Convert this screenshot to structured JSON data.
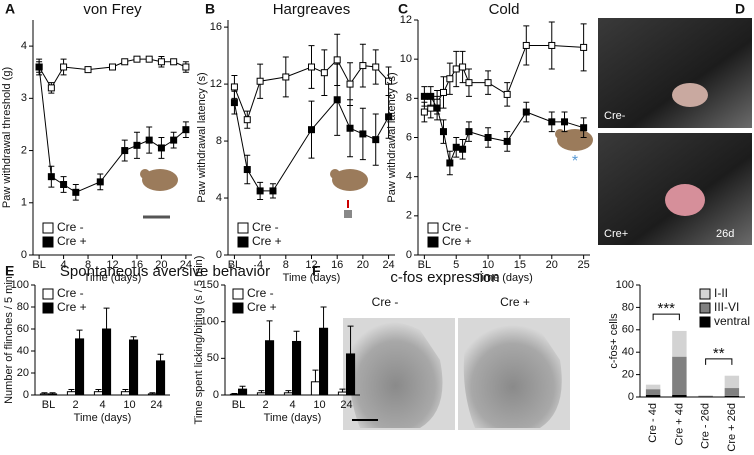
{
  "chart_data": [
    {
      "type": "line",
      "label": "A",
      "title": "von Frey",
      "xlabel": "Time (days)",
      "ylabel": "Paw withdrawal threshold (g)",
      "xlim": [
        -1,
        25
      ],
      "xticks": [
        {
          "value": 0,
          "label": "BL"
        },
        4,
        8,
        12,
        16,
        20,
        24
      ],
      "ylim": [
        0,
        4.5
      ],
      "yticks": [
        0,
        1,
        2,
        3,
        4
      ],
      "legend": "lower left",
      "series": [
        {
          "name": "Cre -",
          "color": "#ffffff",
          "x": [
            0,
            2,
            4,
            8,
            12,
            14,
            16,
            18,
            20,
            22,
            24
          ],
          "values": [
            3.6,
            3.2,
            3.6,
            3.55,
            3.6,
            3.7,
            3.75,
            3.75,
            3.7,
            3.7,
            3.6
          ],
          "errors": [
            0.1,
            0.1,
            0.15,
            0.05,
            0.05,
            0.05,
            0.05,
            0.05,
            0.1,
            0.05,
            0.1
          ]
        },
        {
          "name": "Cre +",
          "color": "#000000",
          "x": [
            0,
            2,
            4,
            6,
            10,
            14,
            16,
            18,
            20,
            22,
            24
          ],
          "values": [
            3.6,
            1.5,
            1.35,
            1.2,
            1.4,
            2.0,
            2.1,
            2.2,
            2.05,
            2.2,
            2.4
          ],
          "errors": [
            0.15,
            0.2,
            0.15,
            0.15,
            0.15,
            0.2,
            0.25,
            0.25,
            0.2,
            0.15,
            0.15
          ]
        }
      ]
    },
    {
      "type": "line",
      "label": "B",
      "title": "Hargreaves",
      "xlabel": "Time (days)",
      "ylabel": "Paw withdrawal latency (s)",
      "xlim": [
        -1,
        25
      ],
      "xticks": [
        {
          "value": 0,
          "label": "BL"
        },
        4,
        8,
        12,
        16,
        20,
        24
      ],
      "ylim": [
        0,
        16.5
      ],
      "yticks": [
        0,
        4,
        8,
        12,
        16
      ],
      "legend": "lower left",
      "series": [
        {
          "name": "Cre -",
          "color": "#ffffff",
          "x": [
            0,
            2,
            4,
            8,
            12,
            14,
            16,
            18,
            20,
            22,
            24
          ],
          "values": [
            11.8,
            9.5,
            12.2,
            12.5,
            13.2,
            12.8,
            13.7,
            12.0,
            13.3,
            13.2,
            12.2
          ],
          "errors": [
            0.8,
            0.6,
            1.2,
            1.4,
            1.5,
            1.6,
            1.8,
            1.5,
            1.5,
            1.2,
            1.0
          ]
        },
        {
          "name": "Cre +",
          "color": "#000000",
          "x": [
            0,
            2,
            4,
            6,
            12,
            16,
            18,
            20,
            22,
            24
          ],
          "values": [
            10.7,
            6.0,
            4.5,
            4.5,
            8.8,
            10.9,
            8.9,
            8.5,
            8.1,
            9.7
          ],
          "errors": [
            0.8,
            1.0,
            0.6,
            0.5,
            2.0,
            2.5,
            2.0,
            1.8,
            1.8,
            1.5
          ]
        }
      ]
    },
    {
      "type": "line",
      "label": "C",
      "title": "Cold",
      "xlabel": "Time (days)",
      "ylabel": "Paw withdrawal latency (s)",
      "xlim": [
        -1,
        26
      ],
      "xticks": [
        {
          "value": 0,
          "label": "BL"
        },
        5,
        10,
        15,
        20,
        25
      ],
      "ylim": [
        0,
        12
      ],
      "yticks": [
        0,
        2,
        4,
        6,
        8,
        10,
        12
      ],
      "legend": "lower left",
      "series": [
        {
          "name": "Cre -",
          "color": "#ffffff",
          "x": [
            0,
            1,
            2,
            3,
            4,
            5,
            6,
            7,
            10,
            13,
            16,
            20,
            25
          ],
          "values": [
            7.3,
            7.5,
            7.8,
            8.3,
            9.0,
            9.5,
            9.6,
            8.8,
            8.8,
            8.2,
            10.7,
            10.7,
            10.6
          ],
          "errors": [
            0.5,
            0.5,
            0.6,
            0.8,
            0.8,
            0.9,
            0.8,
            0.7,
            0.6,
            0.6,
            1.0,
            1.2,
            1.2
          ]
        },
        {
          "name": "Cre +",
          "color": "#000000",
          "x": [
            0,
            1,
            2,
            3,
            4,
            5,
            6,
            7,
            10,
            13,
            16,
            20,
            22,
            25
          ],
          "values": [
            8.1,
            8.1,
            7.5,
            6.3,
            4.7,
            5.5,
            5.4,
            6.3,
            6.0,
            5.8,
            7.3,
            6.8,
            6.8,
            6.5
          ],
          "errors": [
            0.5,
            0.5,
            0.6,
            0.6,
            0.6,
            0.5,
            0.5,
            0.5,
            0.5,
            0.5,
            0.5,
            0.5,
            0.5,
            0.5
          ]
        }
      ]
    },
    {
      "type": "bar",
      "label": "E",
      "title": "Spontaneous aversive behavior",
      "xlabel": "Time (days)",
      "ylabel": "Number of flinches / 5 min",
      "categories": [
        "BL",
        "2",
        "4",
        "10",
        "24"
      ],
      "ylim": [
        0,
        100
      ],
      "yticks": [
        0,
        20,
        40,
        60,
        80,
        100
      ],
      "legend": "upper left",
      "series": [
        {
          "name": "Cre -",
          "color": "#ffffff",
          "values": [
            1,
            3,
            3,
            3,
            1
          ],
          "errors": [
            1,
            2,
            2,
            2,
            1
          ]
        },
        {
          "name": "Cre +",
          "color": "#000000",
          "values": [
            1,
            51,
            60,
            50,
            31
          ],
          "errors": [
            1,
            8,
            19,
            3,
            6
          ]
        }
      ]
    },
    {
      "type": "bar",
      "xlabel": "Time (days)",
      "ylabel": "Time spent licking/biting (s / 5 min)",
      "categories": [
        "BL",
        "2",
        "4",
        "10",
        "24"
      ],
      "ylim": [
        0,
        150
      ],
      "yticks": [
        0,
        50,
        100,
        150
      ],
      "legend": "upper left",
      "series": [
        {
          "name": "Cre -",
          "color": "#ffffff",
          "values": [
            1,
            3,
            3,
            18,
            4
          ],
          "errors": [
            1,
            3,
            3,
            16,
            4
          ]
        },
        {
          "name": "Cre +",
          "color": "#000000",
          "values": [
            8,
            74,
            73,
            91,
            56
          ],
          "errors": [
            4,
            27,
            14,
            29,
            38
          ]
        }
      ]
    },
    {
      "type": "stacked_bar",
      "ylabel": "c-fos+ cells",
      "categories": [
        "Cre - 4d",
        "Cre + 4d",
        "Cre - 26d",
        "Cre + 26d"
      ],
      "ylim": [
        0,
        100
      ],
      "yticks": [
        0,
        20,
        40,
        60,
        80,
        100
      ],
      "legend": "upper right",
      "series": [
        {
          "name": "ventral",
          "color": "#000000",
          "values": [
            2,
            2,
            0.5,
            1
          ]
        },
        {
          "name": "III-VI",
          "color": "#808080",
          "values": [
            5,
            34,
            0.5,
            7
          ]
        },
        {
          "name": "I-II",
          "color": "#d3d3d3",
          "values": [
            4,
            23,
            0.5,
            11
          ]
        }
      ],
      "annotations": [
        {
          "text": "***",
          "between": [
            0,
            1
          ],
          "y": 74
        },
        {
          "text": "**",
          "between": [
            2,
            3
          ],
          "y": 34
        }
      ]
    }
  ],
  "figures": {
    "photos": {
      "label": "D",
      "captions": [
        "Cre-",
        "Cre+",
        "26d"
      ]
    },
    "micrographs": {
      "label": "F",
      "title": "c-fos expression",
      "captions": [
        "Cre -",
        "Cre +"
      ]
    }
  }
}
